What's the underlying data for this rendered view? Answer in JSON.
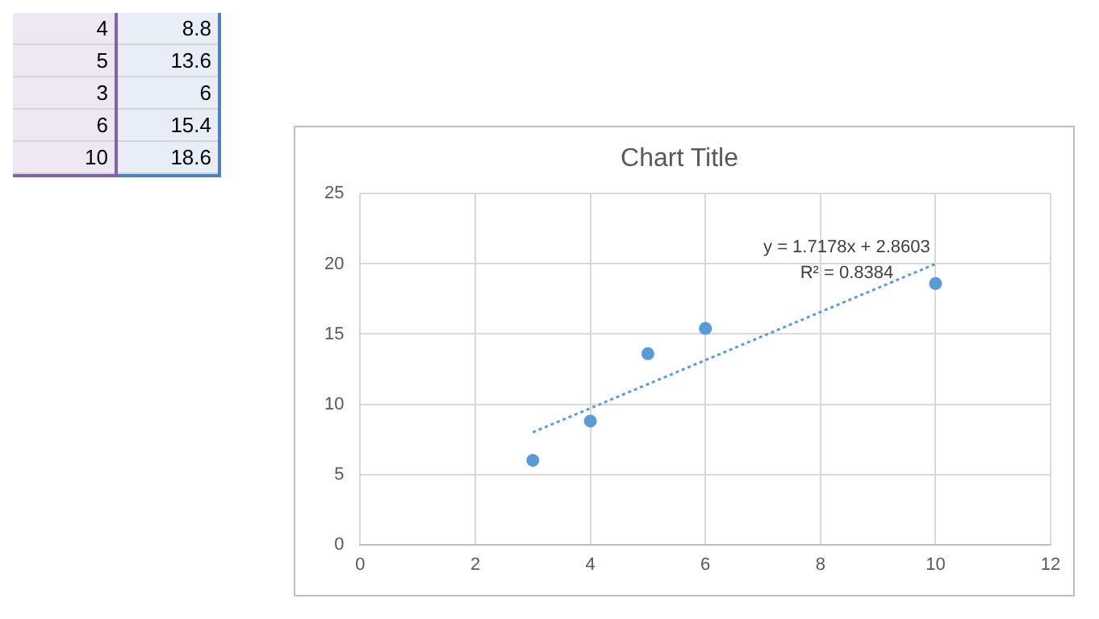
{
  "chart_data": [
    {
      "type": "other",
      "annotations": [
        "4",
        "8.8",
        "5",
        "13.6",
        "3",
        "6",
        "6",
        "15.4",
        "10",
        "18.6"
      ]
    },
    {
      "type": "scatter",
      "title": "Chart Title",
      "x": [
        4,
        5,
        3,
        6,
        10
      ],
      "values": [
        8.8,
        13.6,
        6,
        15.4,
        18.6
      ],
      "color": "#5b9bd5",
      "series": [
        {
          "type": "line",
          "x": [
            3,
            10
          ],
          "values": [
            8.0,
            20.0
          ],
          "color": "#5b9bd5",
          "line_style": "dotted",
          "marker": "none"
        }
      ],
      "annotations": [
        {
          "text": "y = 1.7178x + 2.8603",
          "x": 10,
          "y": 20.0
        },
        {
          "text": "R² = 0.8384",
          "x": 10,
          "y": 20.0
        }
      ],
      "xlim": [
        0,
        12
      ],
      "xticks": [
        0,
        2,
        4,
        6,
        8,
        10,
        12
      ],
      "ylim": [
        0,
        25
      ],
      "yticks": [
        0,
        5,
        10,
        15,
        20,
        25
      ],
      "grid": true,
      "legend": false,
      "marker": "circle"
    }
  ]
}
